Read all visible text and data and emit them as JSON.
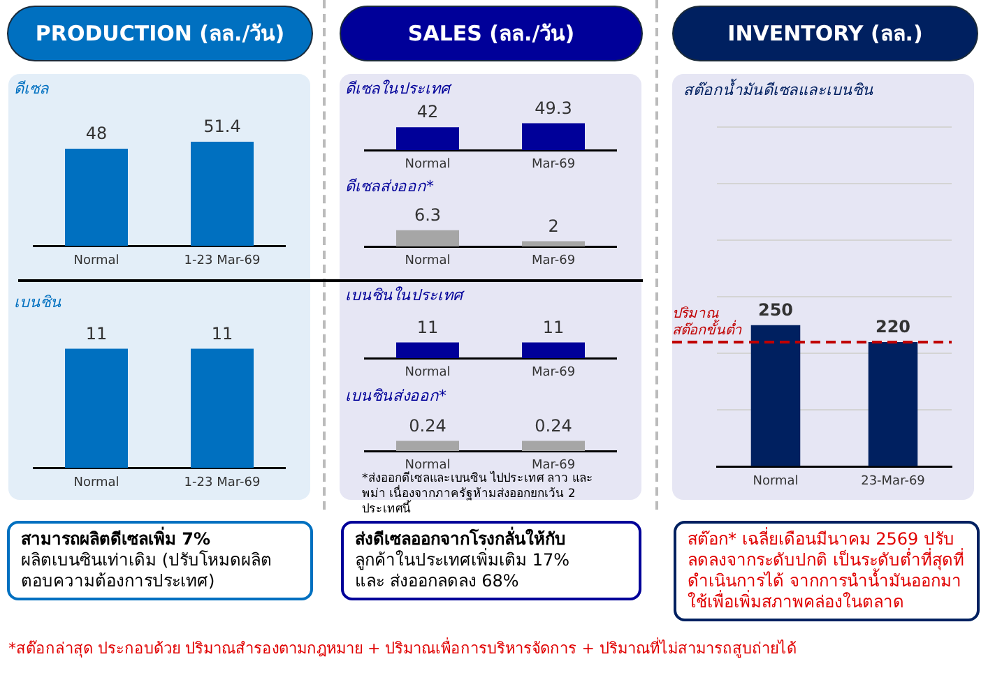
{
  "chart_data": [
    {
      "type": "bar",
      "title": "PRODUCTION (ลล./วัน)",
      "subtitle": "ดีเซล",
      "categories": [
        "Normal",
        "1-23 Mar-69"
      ],
      "values": [
        48,
        51.4
      ],
      "color": "#0070c0",
      "data_labels": true
    },
    {
      "type": "bar",
      "subtitle": "เบนซิน",
      "categories": [
        "Normal",
        "1-23 Mar-69"
      ],
      "values": [
        11,
        11
      ],
      "color": "#0070c0",
      "data_labels": true
    },
    {
      "type": "bar",
      "title": "SALES (ลล./วัน)",
      "subtitle": "ดีเซลในประเทศ",
      "categories": [
        "Normal",
        "Mar-69"
      ],
      "values": [
        42,
        49.3
      ],
      "color": "#000099",
      "data_labels": true
    },
    {
      "type": "bar",
      "subtitle": "ดีเซลส่งออก*",
      "categories": [
        "Normal",
        "Mar-69"
      ],
      "values": [
        6.3,
        2
      ],
      "color": "#a6a6a6",
      "data_labels": true
    },
    {
      "type": "bar",
      "subtitle": "เบนซินในประเทศ",
      "categories": [
        "Normal",
        "Mar-69"
      ],
      "values": [
        11,
        11
      ],
      "color": "#000099",
      "data_labels": true
    },
    {
      "type": "bar",
      "subtitle": "เบนซินส่งออก*",
      "categories": [
        "Normal",
        "Mar-69"
      ],
      "values": [
        0.24,
        0.24
      ],
      "color": "#a6a6a6",
      "data_labels": true,
      "annotations": [
        "*ส่งออกดีเซลและเบนซิน ไปประเทศ ลาว และ พม่า เนื่องจากภาครัฐห้ามส่งออกยกเว้น 2 ประเทศนี้"
      ]
    },
    {
      "type": "bar",
      "title": "INVENTORY (ลล.)",
      "subtitle": "สต๊อกน้ำมันดีเซลและเบนซิน",
      "categories": [
        "Normal",
        "23-Mar-69"
      ],
      "values": [
        250,
        220
      ],
      "color": "#002060",
      "data_labels": true,
      "ylim": [
        0,
        600
      ],
      "yticks": [
        0,
        100,
        200,
        300,
        400,
        500,
        600
      ],
      "tick_labels": "x",
      "grid": "y",
      "ref_lines": [
        {
          "axis": "y",
          "value": 220,
          "label": "ปริมาณ สต๊อกขั้นต่ำ",
          "color": "#c00000",
          "line_style": "dashed"
        }
      ]
    },
    {
      "type": "other",
      "color": "#000000",
      "annotations": [
        "สามารถผลิตดีเซลเพิ่ม 7%",
        "ผลิตเบนซินเท่าเดิม (ปรับโหมดผลิตตอบความต้องการประเทศ)"
      ]
    },
    {
      "type": "other",
      "color": "#000000",
      "annotations": [
        "ส่งดีเซลออกจากโรงกลั่นให้กับ",
        "ลูกค้าในประเทศเพิ่มเติม 17%",
        "และ ส่งออกลดลง 68%"
      ]
    },
    {
      "type": "other",
      "color": "#e00000",
      "annotations": [
        "สต๊อก* เฉลี่ยเดือนมีนาคม 2569 ปรับลดลงจากระดับปกติ เป็นระดับต่ำที่สุดที่ดำเนินการได้ จากการนำน้ำมันออกมาใช้เพื่อเพิ่มสภาพคล่องในตลาด"
      ]
    },
    {
      "type": "other",
      "color": "#e00000",
      "annotations": [
        "*สต๊อกล่าสุด ประกอบด้วย ปริมาณสำรองตามกฎหมาย + ปริมาณเพื่อการบริหารจัดการ + ปริมาณที่ไม่สามารถสูบถ่ายได้"
      ]
    }
  ]
}
